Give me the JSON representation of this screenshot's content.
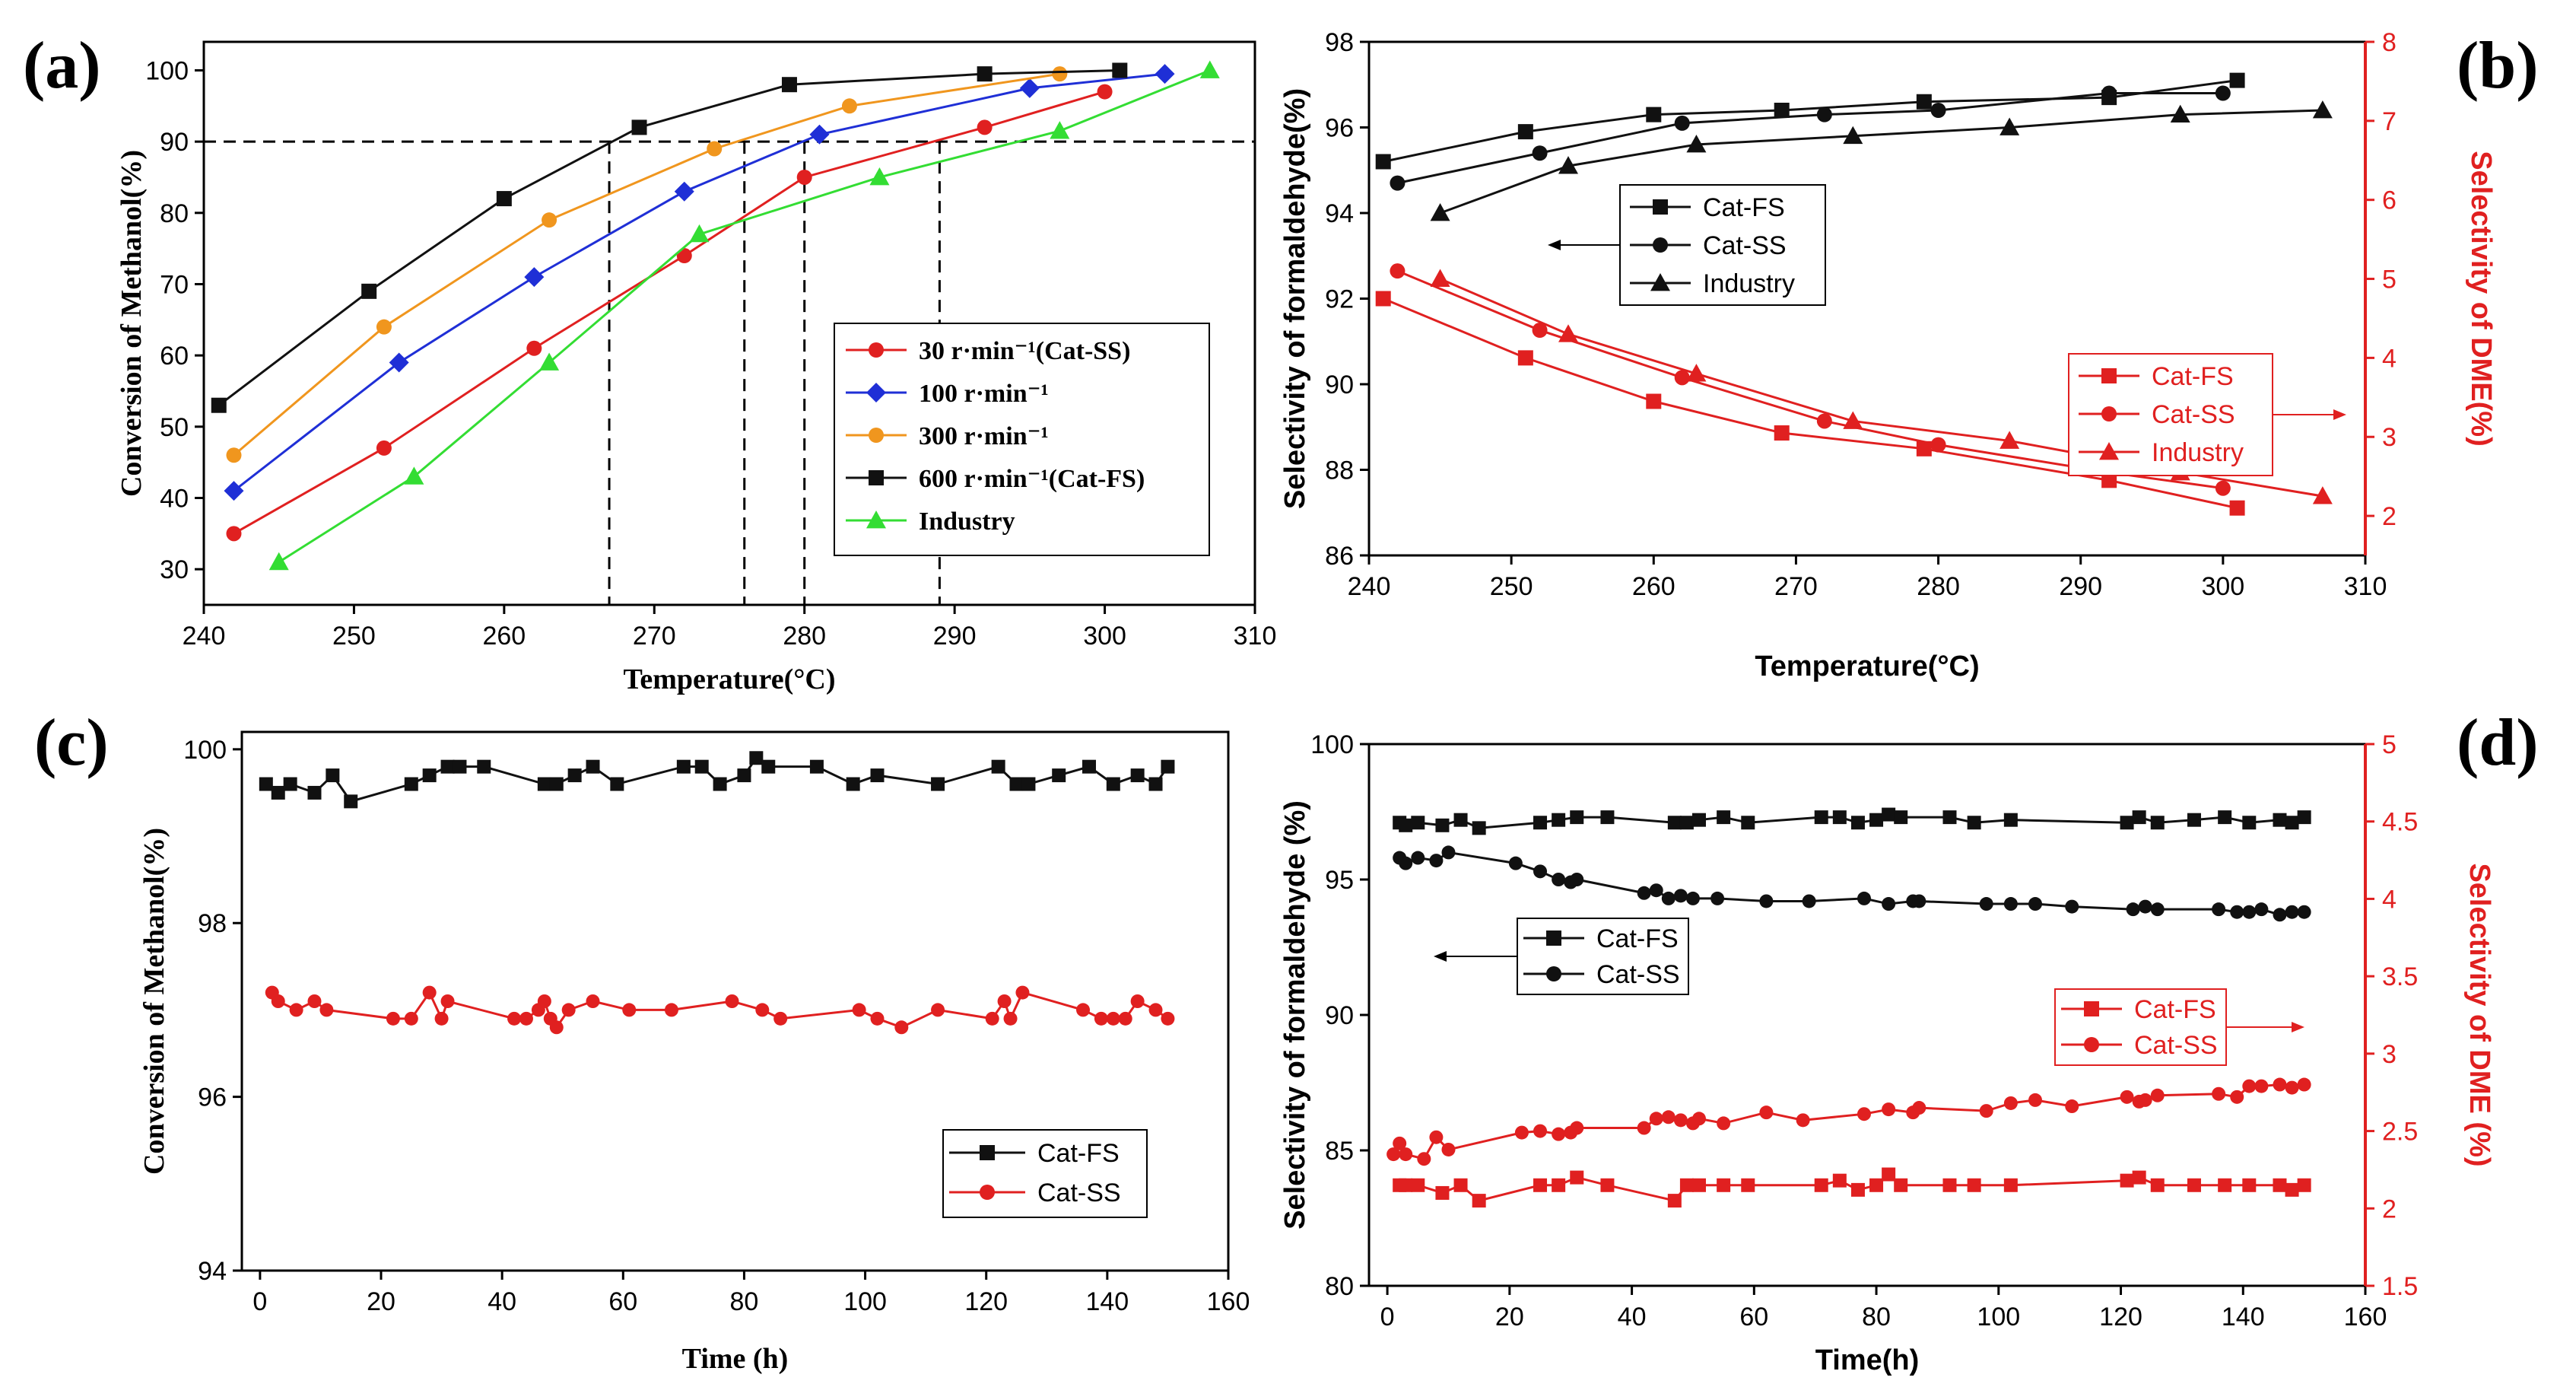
{
  "chart_data": [
    {
      "panel": "(a)",
      "type": "line",
      "xlabel": "Temperature(°C)",
      "ylabel": "Conversion of Methanol(%)",
      "xlim": [
        240,
        310
      ],
      "ylim": [
        25,
        104
      ],
      "xticks": [
        240,
        250,
        260,
        270,
        280,
        290,
        300,
        310
      ],
      "yticks": [
        30,
        40,
        50,
        60,
        70,
        80,
        90,
        100
      ],
      "legend_position": "center-right",
      "reference_line_y": 90,
      "reference_lines_x": [
        267,
        276,
        280,
        289
      ],
      "series": [
        {
          "name": "30 r·min⁻¹(Cat-SS)",
          "color": "#e02020",
          "marker": "circle",
          "x": [
            242,
            252,
            262,
            272,
            280,
            292,
            300
          ],
          "y": [
            35,
            47,
            61,
            74,
            85,
            92,
            97
          ]
        },
        {
          "name": "100 r·min⁻¹",
          "color": "#1f2fd6",
          "marker": "diamond",
          "x": [
            242,
            253,
            262,
            272,
            281,
            295,
            304
          ],
          "y": [
            41,
            59,
            71,
            83,
            91,
            97.5,
            99.5
          ]
        },
        {
          "name": "300 r·min⁻¹",
          "color": "#f0961e",
          "marker": "circle",
          "x": [
            242,
            252,
            263,
            274,
            283,
            297
          ],
          "y": [
            46,
            64,
            79,
            89,
            95,
            99.5
          ]
        },
        {
          "name": "600 r·min⁻¹(Cat-FS)",
          "color": "#111111",
          "marker": "square",
          "x": [
            241,
            251,
            260,
            269,
            279,
            292,
            301
          ],
          "y": [
            53,
            69,
            82,
            92,
            98,
            99.5,
            100
          ]
        },
        {
          "name": "Industry",
          "color": "#33dd33",
          "marker": "triangle",
          "x": [
            245,
            254,
            263,
            273,
            285,
            297,
            307
          ],
          "y": [
            31,
            43,
            59,
            77,
            85,
            91.5,
            100
          ]
        }
      ]
    },
    {
      "panel": "(b)",
      "type": "line",
      "xlabel": "Temperature(°C)",
      "ylabel": "Selectivity of formaldehyde(%)",
      "y2label": "Selectivity of DME(%)",
      "xlim": [
        240,
        310
      ],
      "ylim": [
        86,
        98
      ],
      "y2lim": [
        1.5,
        8
      ],
      "xticks": [
        240,
        250,
        260,
        270,
        280,
        290,
        300,
        310
      ],
      "yticks": [
        86,
        88,
        90,
        92,
        94,
        96,
        98
      ],
      "y2ticks": [
        2,
        3,
        4,
        5,
        6,
        7,
        8
      ],
      "legend_position": "upper-left (formaldehyde) / center-right (DME)",
      "series": [
        {
          "name": "Cat-FS",
          "axis": "left",
          "color": "#111111",
          "marker": "square",
          "x": [
            241,
            251,
            260,
            269,
            279,
            292,
            301
          ],
          "y": [
            95.2,
            95.9,
            96.3,
            96.4,
            96.6,
            96.7,
            97.1
          ]
        },
        {
          "name": "Cat-SS",
          "axis": "left",
          "color": "#111111",
          "marker": "circle",
          "x": [
            242,
            252,
            262,
            272,
            280,
            292,
            300
          ],
          "y": [
            94.7,
            95.4,
            96.1,
            96.3,
            96.4,
            96.8,
            96.8
          ]
        },
        {
          "name": "Industry",
          "axis": "left",
          "color": "#111111",
          "marker": "triangle",
          "x": [
            245,
            254,
            263,
            274,
            285,
            297,
            307
          ],
          "y": [
            94,
            95.1,
            95.6,
            95.8,
            96,
            96.3,
            96.4
          ]
        },
        {
          "name": "Cat-FS",
          "axis": "right",
          "color": "#e02020",
          "marker": "square",
          "x": [
            241,
            251,
            260,
            269,
            279,
            292,
            301
          ],
          "y": [
            4.75,
            4.0,
            3.45,
            3.05,
            2.85,
            2.45,
            2.1
          ]
        },
        {
          "name": "Cat-SS",
          "axis": "right",
          "color": "#e02020",
          "marker": "circle",
          "x": [
            242,
            252,
            262,
            272,
            280,
            292,
            300
          ],
          "y": [
            5.1,
            4.35,
            3.75,
            3.2,
            2.9,
            2.55,
            2.35
          ]
        },
        {
          "name": "Industry",
          "axis": "right",
          "color": "#e02020",
          "marker": "triangle",
          "x": [
            245,
            254,
            263,
            274,
            285,
            297,
            307
          ],
          "y": [
            5.0,
            4.3,
            3.8,
            3.2,
            2.95,
            2.55,
            2.25
          ]
        }
      ]
    },
    {
      "panel": "(c)",
      "type": "line",
      "xlabel": "Time (h)",
      "ylabel": "Conversion of Methanol(%)",
      "xlim": [
        -3,
        160
      ],
      "ylim": [
        94,
        100.2
      ],
      "xticks": [
        0,
        20,
        40,
        60,
        80,
        100,
        120,
        140,
        160
      ],
      "yticks": [
        94,
        96,
        98,
        100
      ],
      "legend_position": "lower-right",
      "series": [
        {
          "name": "Cat-FS",
          "color": "#111111",
          "marker": "square",
          "x": [
            1,
            3,
            5,
            9,
            12,
            15,
            25,
            28,
            31,
            33,
            37,
            47,
            49,
            52,
            55,
            59,
            70,
            73,
            76,
            80,
            82,
            84,
            92,
            98,
            102,
            112,
            122,
            125,
            127,
            132,
            137,
            141,
            145,
            148,
            150
          ],
          "y": [
            99.6,
            99.5,
            99.6,
            99.5,
            99.7,
            99.4,
            99.6,
            99.7,
            99.8,
            99.8,
            99.8,
            99.6,
            99.6,
            99.7,
            99.8,
            99.6,
            99.8,
            99.8,
            99.6,
            99.7,
            99.9,
            99.8,
            99.8,
            99.6,
            99.7,
            99.6,
            99.8,
            99.6,
            99.6,
            99.7,
            99.8,
            99.6,
            99.7,
            99.6,
            99.8
          ]
        },
        {
          "name": "Cat-SS",
          "color": "#e02020",
          "marker": "circle",
          "x": [
            2,
            3,
            6,
            9,
            11,
            22,
            25,
            28,
            30,
            31,
            42,
            44,
            46,
            47,
            48,
            49,
            51,
            55,
            61,
            68,
            78,
            83,
            86,
            99,
            102,
            106,
            112,
            121,
            123,
            124,
            126,
            136,
            139,
            141,
            143,
            145,
            148,
            150
          ],
          "y": [
            97.2,
            97.1,
            97.0,
            97.1,
            97.0,
            96.9,
            96.9,
            97.2,
            96.9,
            97.1,
            96.9,
            96.9,
            97.0,
            97.1,
            96.9,
            96.8,
            97.0,
            97.1,
            97.0,
            97.0,
            97.1,
            97.0,
            96.9,
            97.0,
            96.9,
            96.8,
            97.0,
            96.9,
            97.1,
            96.9,
            97.2,
            97.0,
            96.9,
            96.9,
            96.9,
            97.1,
            97.0,
            96.9
          ]
        }
      ]
    },
    {
      "panel": "(d)",
      "type": "line",
      "xlabel": "Time(h)",
      "ylabel": "Selectivity of formaldehyde (%)",
      "y2label": "Selectivity of DME (%)",
      "xlim": [
        -3,
        160
      ],
      "ylim": [
        80,
        100
      ],
      "y2lim": [
        1.5,
        5.0
      ],
      "xticks": [
        0,
        20,
        40,
        60,
        80,
        100,
        120,
        140,
        160
      ],
      "yticks": [
        80,
        85,
        90,
        95,
        100
      ],
      "y2ticks": [
        1.5,
        2.0,
        2.5,
        3.0,
        3.5,
        4.0,
        4.5,
        5.0
      ],
      "legend_position": "center-left (formaldehyde) / center-right (DME)",
      "series": [
        {
          "name": "Cat-FS",
          "axis": "left",
          "color": "#111111",
          "marker": "square",
          "x": [
            2,
            3,
            5,
            9,
            12,
            15,
            25,
            28,
            31,
            36,
            47,
            49,
            51,
            55,
            59,
            71,
            74,
            77,
            80,
            82,
            84,
            92,
            96,
            102,
            121,
            123,
            126,
            132,
            137,
            141,
            146,
            148,
            150
          ],
          "y": [
            97.1,
            97.0,
            97.1,
            97.0,
            97.2,
            96.9,
            97.1,
            97.2,
            97.3,
            97.3,
            97.1,
            97.1,
            97.2,
            97.3,
            97.1,
            97.3,
            97.3,
            97.1,
            97.2,
            97.4,
            97.3,
            97.3,
            97.1,
            97.2,
            97.1,
            97.3,
            97.1,
            97.2,
            97.3,
            97.1,
            97.2,
            97.1,
            97.3
          ]
        },
        {
          "name": "Cat-SS",
          "axis": "left",
          "color": "#111111",
          "marker": "circle",
          "x": [
            2,
            3,
            5,
            8,
            10,
            21,
            25,
            28,
            30,
            31,
            42,
            44,
            46,
            48,
            50,
            54,
            62,
            69,
            78,
            82,
            86,
            87,
            98,
            102,
            106,
            112,
            122,
            124,
            126,
            136,
            139,
            141,
            143,
            146,
            148,
            150
          ],
          "y": [
            95.8,
            95.6,
            95.8,
            95.7,
            96.0,
            95.6,
            95.3,
            95.0,
            94.9,
            95.0,
            94.5,
            94.6,
            94.3,
            94.4,
            94.3,
            94.3,
            94.2,
            94.2,
            94.3,
            94.1,
            94.2,
            94.2,
            94.1,
            94.1,
            94.1,
            94.0,
            93.9,
            94.0,
            93.9,
            93.9,
            93.8,
            93.8,
            93.9,
            93.7,
            93.8,
            93.8
          ]
        },
        {
          "name": "Cat-FS",
          "axis": "right",
          "color": "#e02020",
          "marker": "square",
          "x": [
            2,
            3,
            5,
            9,
            12,
            15,
            25,
            28,
            31,
            36,
            47,
            49,
            51,
            55,
            59,
            71,
            74,
            77,
            80,
            82,
            84,
            92,
            96,
            102,
            121,
            123,
            126,
            132,
            137,
            141,
            146,
            148,
            150
          ],
          "y": [
            2.15,
            2.15,
            2.15,
            2.1,
            2.15,
            2.05,
            2.15,
            2.15,
            2.2,
            2.15,
            2.05,
            2.15,
            2.15,
            2.15,
            2.15,
            2.15,
            2.18,
            2.12,
            2.15,
            2.22,
            2.15,
            2.15,
            2.15,
            2.15,
            2.18,
            2.2,
            2.15,
            2.15,
            2.15,
            2.15,
            2.15,
            2.12,
            2.15
          ]
        },
        {
          "name": "Cat-SS",
          "axis": "right",
          "color": "#e02020",
          "marker": "circle",
          "x": [
            1,
            2,
            3,
            6,
            8,
            10,
            22,
            25,
            28,
            30,
            31,
            42,
            44,
            46,
            48,
            50,
            51,
            55,
            62,
            68,
            78,
            82,
            86,
            87,
            98,
            102,
            106,
            112,
            121,
            123,
            124,
            126,
            136,
            139,
            141,
            143,
            146,
            148,
            150
          ],
          "y": [
            2.35,
            2.42,
            2.35,
            2.32,
            2.46,
            2.38,
            2.49,
            2.5,
            2.48,
            2.49,
            2.52,
            2.52,
            2.58,
            2.59,
            2.57,
            2.55,
            2.58,
            2.55,
            2.62,
            2.57,
            2.61,
            2.64,
            2.62,
            2.65,
            2.63,
            2.68,
            2.7,
            2.66,
            2.72,
            2.69,
            2.7,
            2.73,
            2.74,
            2.72,
            2.79,
            2.79,
            2.8,
            2.78,
            2.8
          ]
        }
      ]
    }
  ]
}
